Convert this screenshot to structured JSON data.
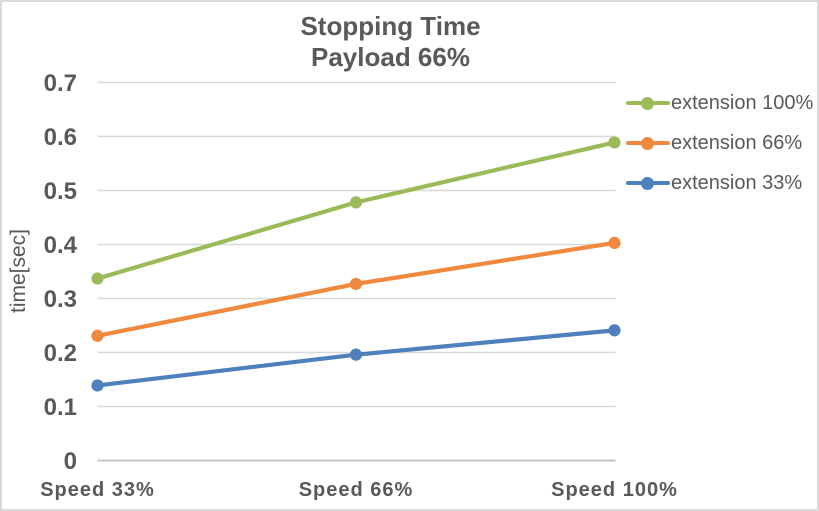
{
  "chart_data": {
    "type": "line",
    "title": "Stopping Time",
    "subtitle": "Payload 66%",
    "ylabel": "time[sec]",
    "xlabel": "",
    "categories": [
      "Speed 33%",
      "Speed 66%",
      "Speed 100%"
    ],
    "series": [
      {
        "name": "extension 100%",
        "color": "#9bbb59",
        "values": [
          0.337,
          0.478,
          0.589
        ]
      },
      {
        "name": "extension 66%",
        "color": "#f0883e",
        "values": [
          0.231,
          0.327,
          0.403
        ]
      },
      {
        "name": "extension 33%",
        "color": "#4e80bd",
        "values": [
          0.139,
          0.196,
          0.241
        ]
      }
    ],
    "ylim": [
      0,
      0.7
    ],
    "ytick_step": 0.1,
    "yticks": [
      "0",
      "0.1",
      "0.2",
      "0.3",
      "0.4",
      "0.5",
      "0.6",
      "0.7"
    ],
    "grid": true,
    "legend_position": "right"
  },
  "colors": {
    "text": "#595959",
    "gridline": "#d9d9d9",
    "axis_line": "#bfbfbf",
    "border": "#d9d9d9",
    "background": "#ffffff"
  }
}
